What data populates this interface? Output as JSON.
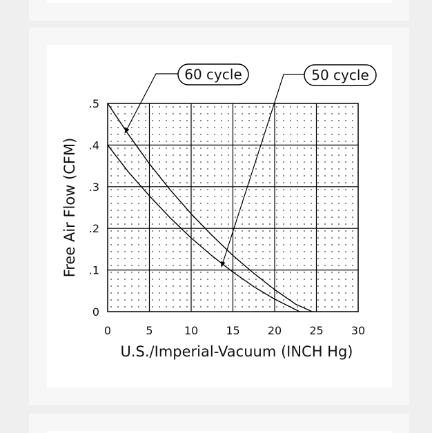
{
  "chart_data": {
    "type": "line",
    "xlabel": "U.S./Imperial-Vacuum (INCH Hg)",
    "ylabel": "Free Air Flow (CFM)",
    "xlim": [
      0,
      30
    ],
    "ylim": [
      0,
      0.5
    ],
    "x_ticks": [
      "0",
      "5",
      "10",
      "15",
      "20",
      "25",
      "30"
    ],
    "y_ticks": [
      "0",
      ".1",
      ".2",
      ".3",
      ".4",
      ".5"
    ],
    "grid": true,
    "series": [
      {
        "name": "60 cycle",
        "x": [
          0,
          2.5,
          5,
          7.5,
          10,
          12.5,
          15,
          17.5,
          20,
          22.5,
          24.5
        ],
        "y": [
          0.5,
          0.425,
          0.355,
          0.292,
          0.235,
          0.183,
          0.135,
          0.092,
          0.053,
          0.018,
          0.0
        ]
      },
      {
        "name": "50 cycle",
        "x": [
          0,
          2.5,
          5,
          7.5,
          10,
          12.5,
          15,
          17.5,
          20,
          23
        ],
        "y": [
          0.4,
          0.335,
          0.278,
          0.225,
          0.177,
          0.134,
          0.095,
          0.06,
          0.03,
          0.0
        ]
      }
    ],
    "annotations": [
      "60 cycle",
      "50 cycle"
    ]
  }
}
